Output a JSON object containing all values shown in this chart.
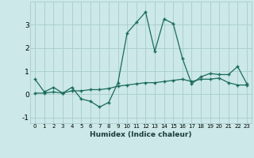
{
  "xlabel": "Humidex (Indice chaleur)",
  "x": [
    0,
    1,
    2,
    3,
    4,
    5,
    6,
    7,
    8,
    9,
    10,
    11,
    12,
    13,
    14,
    15,
    16,
    17,
    18,
    19,
    20,
    21,
    22,
    23
  ],
  "line1": [
    0.65,
    0.1,
    0.3,
    0.05,
    0.3,
    -0.2,
    -0.3,
    -0.55,
    -0.35,
    0.5,
    2.65,
    3.1,
    3.55,
    1.85,
    3.25,
    3.05,
    1.55,
    0.45,
    0.75,
    0.9,
    0.85,
    0.85,
    1.2,
    0.45
  ],
  "line2": [
    0.05,
    0.05,
    0.1,
    0.05,
    0.15,
    0.15,
    0.2,
    0.2,
    0.25,
    0.35,
    0.4,
    0.45,
    0.5,
    0.5,
    0.55,
    0.6,
    0.65,
    0.55,
    0.65,
    0.65,
    0.7,
    0.5,
    0.4,
    0.4
  ],
  "line_color": "#1a6b5a",
  "bg_color": "#cce8e8",
  "grid_color": "#a8cccc",
  "ylim": [
    -1.25,
    4.0
  ],
  "yticks": [
    -1,
    0,
    1,
    2,
    3
  ],
  "marker": "+"
}
